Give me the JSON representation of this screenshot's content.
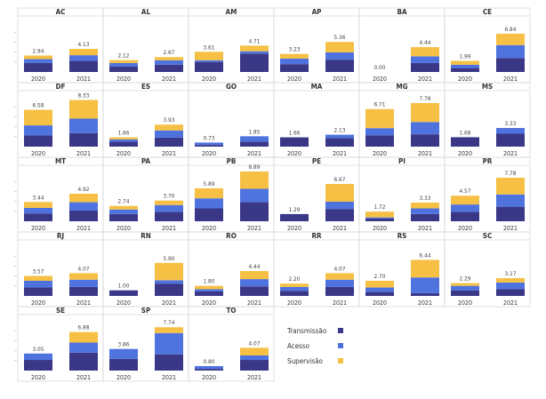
{
  "chart_data": {
    "type": "bar",
    "stacked": true,
    "categories": [
      "2020",
      "2021"
    ],
    "series_names": [
      "Transmissão",
      "Acesso",
      "Supervisão"
    ],
    "colors": {
      "Transmissão": "#3a3787",
      "Acesso": "#4e73df",
      "Supervisão": "#f5c044"
    },
    "ylim": [
      0,
      8.89
    ],
    "legend_position": "bottom-right",
    "panels": [
      {
        "state": "AC",
        "totals": [
          "2.94",
          "4.13"
        ],
        "values": [
          [
            1.6,
            0.7,
            0.64
          ],
          [
            2.0,
            1.0,
            1.13
          ]
        ]
      },
      {
        "state": "AL",
        "totals": [
          "2.12",
          "2.67"
        ],
        "values": [
          [
            1.0,
            0.6,
            0.52
          ],
          [
            1.3,
            0.8,
            0.57
          ]
        ]
      },
      {
        "state": "AM",
        "totals": [
          "3.61",
          "4.71"
        ],
        "values": [
          [
            1.8,
            0.3,
            1.51
          ],
          [
            3.3,
            0.4,
            1.01
          ]
        ]
      },
      {
        "state": "AP",
        "totals": [
          "3.23",
          "5.36"
        ],
        "values": [
          [
            1.4,
            1.0,
            0.83
          ],
          [
            2.2,
            1.3,
            1.86
          ]
        ]
      },
      {
        "state": "BA",
        "totals": [
          "0.00",
          "4.44"
        ],
        "values": [
          [
            0,
            0,
            0
          ],
          [
            1.6,
            1.2,
            1.64
          ]
        ]
      },
      {
        "state": "CE",
        "totals": [
          "1.99",
          "6.84"
        ],
        "values": [
          [
            0.7,
            0.6,
            0.69
          ],
          [
            2.5,
            2.3,
            2.04
          ]
        ]
      },
      {
        "state": "DF",
        "totals": [
          "6.58",
          "8.33"
        ],
        "values": [
          [
            2.0,
            1.8,
            2.78
          ],
          [
            2.4,
            2.6,
            3.33
          ]
        ]
      },
      {
        "state": "ES",
        "totals": [
          "1.66",
          "3.93"
        ],
        "values": [
          [
            0.9,
            0.4,
            0.36
          ],
          [
            1.6,
            1.3,
            1.03
          ]
        ]
      },
      {
        "state": "GO",
        "totals": [
          "0.73",
          "1.85"
        ],
        "values": [
          [
            0.3,
            0.43,
            0
          ],
          [
            0.9,
            0.95,
            0
          ]
        ]
      },
      {
        "state": "MA",
        "totals": [
          "1.66",
          "2.13"
        ],
        "values": [
          [
            1.66,
            0,
            0
          ],
          [
            1.5,
            0.63,
            0
          ]
        ]
      },
      {
        "state": "MG",
        "totals": [
          "6.71",
          "7.78"
        ],
        "values": [
          [
            2.0,
            1.3,
            3.41
          ],
          [
            2.2,
            2.2,
            3.38
          ]
        ]
      },
      {
        "state": "MS",
        "totals": [
          "1.68",
          "3.33"
        ],
        "values": [
          [
            1.68,
            0,
            0
          ],
          [
            2.3,
            1.03,
            0
          ]
        ]
      },
      {
        "state": "MT",
        "totals": [
          "3.44",
          "4.92"
        ],
        "values": [
          [
            1.4,
            1.0,
            1.04
          ],
          [
            1.9,
            1.5,
            1.52
          ]
        ]
      },
      {
        "state": "PA",
        "totals": [
          "2.74",
          "3.70"
        ],
        "values": [
          [
            1.3,
            0.8,
            0.64
          ],
          [
            1.7,
            1.2,
            0.8
          ]
        ]
      },
      {
        "state": "PB",
        "totals": [
          "5.89",
          "8.89"
        ],
        "values": [
          [
            2.3,
            1.8,
            1.79
          ],
          [
            3.4,
            2.4,
            3.09
          ]
        ]
      },
      {
        "state": "PE",
        "totals": [
          "1.29",
          "6.67"
        ],
        "values": [
          [
            1.29,
            0,
            0
          ],
          [
            2.2,
            1.3,
            3.17
          ]
        ]
      },
      {
        "state": "PI",
        "totals": [
          "1.72",
          "3.33"
        ],
        "values": [
          [
            0.5,
            0.2,
            1.02
          ],
          [
            1.3,
            1.0,
            1.03
          ]
        ]
      },
      {
        "state": "PR",
        "totals": [
          "4.57",
          "7.78"
        ],
        "values": [
          [
            1.7,
            1.3,
            1.57
          ],
          [
            2.6,
            2.2,
            2.98
          ]
        ]
      },
      {
        "state": "RJ",
        "totals": [
          "3.57",
          "4.07"
        ],
        "values": [
          [
            1.5,
            1.2,
            0.87
          ],
          [
            1.6,
            1.3,
            1.17
          ]
        ]
      },
      {
        "state": "RN",
        "totals": [
          "1.00",
          "5.90"
        ],
        "values": [
          [
            1.0,
            0,
            0
          ],
          [
            2.2,
            0.6,
            3.1
          ]
        ]
      },
      {
        "state": "RO",
        "totals": [
          "1.80",
          "4.44"
        ],
        "values": [
          [
            0.8,
            0.4,
            0.6
          ],
          [
            1.7,
            1.3,
            1.44
          ]
        ]
      },
      {
        "state": "RR",
        "totals": [
          "2.20",
          "4.07"
        ],
        "values": [
          [
            0.9,
            0.7,
            0.6
          ],
          [
            1.6,
            1.3,
            1.17
          ]
        ]
      },
      {
        "state": "RS",
        "totals": [
          "2.70",
          "6.44"
        ],
        "values": [
          [
            0.7,
            0.8,
            1.2
          ],
          [
            0.5,
            2.8,
            3.14
          ]
        ]
      },
      {
        "state": "SC",
        "totals": [
          "2.29",
          "3.17"
        ],
        "values": [
          [
            1.0,
            0.8,
            0.49
          ],
          [
            1.2,
            1.2,
            0.77
          ]
        ]
      },
      {
        "state": "SE",
        "totals": [
          "3.05",
          "6.88"
        ],
        "values": [
          [
            1.9,
            1.15,
            0
          ],
          [
            3.2,
            1.8,
            1.88
          ]
        ]
      },
      {
        "state": "SP",
        "totals": [
          "3.86",
          "7.74"
        ],
        "values": [
          [
            2.1,
            1.76,
            0
          ],
          [
            2.9,
            3.8,
            1.04
          ]
        ]
      },
      {
        "state": "TO",
        "totals": [
          "0.80",
          "4.07"
        ],
        "values": [
          [
            0.3,
            0.5,
            0
          ],
          [
            1.9,
            0.8,
            1.37
          ]
        ]
      }
    ]
  }
}
